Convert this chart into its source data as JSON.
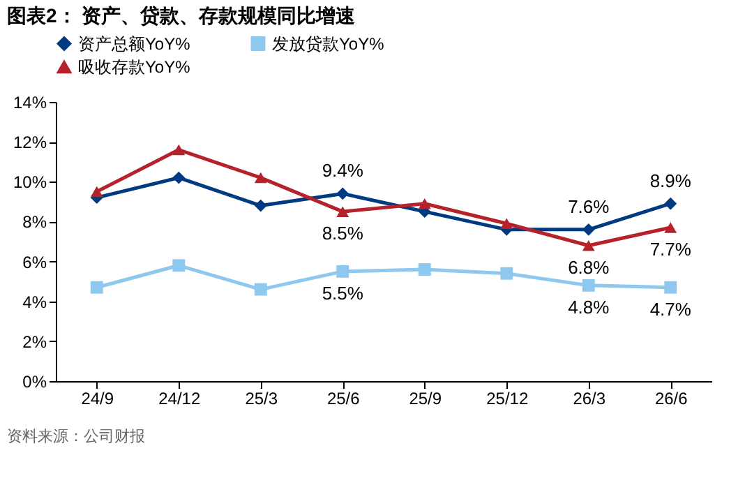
{
  "chart_data": {
    "type": "line",
    "title": "图表2：  资产、贷款、存款规模同比增速",
    "categories": [
      "24/9",
      "24/12",
      "25/3",
      "25/6",
      "25/9",
      "25/12",
      "26/3",
      "26/6"
    ],
    "series": [
      {
        "name": "资产总额YoY%",
        "color": "#003a80",
        "marker": "diamond",
        "values": [
          9.2,
          10.2,
          8.8,
          9.4,
          8.5,
          7.6,
          7.6,
          8.9
        ],
        "value_labels": [
          null,
          null,
          null,
          "9.4%",
          null,
          null,
          "7.6%",
          "8.9%"
        ]
      },
      {
        "name": "发放贷款YoY%",
        "color": "#8ec8ee",
        "marker": "square",
        "values": [
          4.7,
          5.8,
          4.6,
          5.5,
          5.6,
          5.4,
          4.8,
          4.7
        ],
        "value_labels": [
          null,
          null,
          null,
          "5.5%",
          null,
          null,
          "4.8%",
          "4.7%"
        ]
      },
      {
        "name": "吸收存款YoY%",
        "color": "#b5222b",
        "marker": "triangle",
        "values": [
          9.5,
          11.6,
          10.2,
          8.5,
          8.9,
          7.9,
          6.8,
          7.7
        ],
        "value_labels": [
          null,
          null,
          null,
          "8.5%",
          null,
          null,
          "6.8%",
          "7.7%"
        ]
      }
    ],
    "ylim": [
      0,
      14
    ],
    "yticks": [
      {
        "value": 0,
        "label": "0%"
      },
      {
        "value": 2,
        "label": "2%"
      },
      {
        "value": 4,
        "label": "4%"
      },
      {
        "value": 6,
        "label": "6%"
      },
      {
        "value": 8,
        "label": "8%"
      },
      {
        "value": 10,
        "label": "10%"
      },
      {
        "value": 12,
        "label": "12%"
      },
      {
        "value": 14,
        "label": "14%"
      }
    ],
    "grid": false,
    "legend": "top",
    "line_style": "solid",
    "annotations": [
      "资料来源：公司财报"
    ]
  }
}
